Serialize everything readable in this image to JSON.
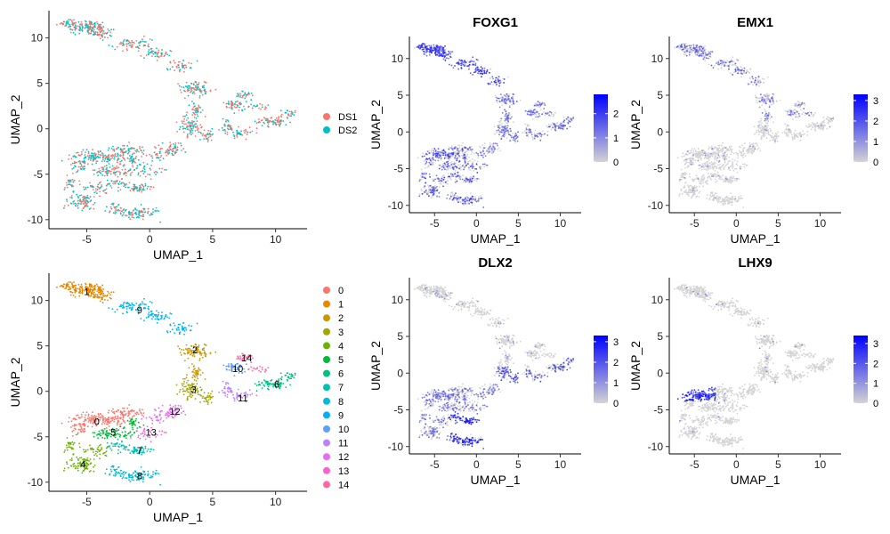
{
  "chart_data": [
    {
      "type": "scatter",
      "id": "dataset",
      "title": "",
      "xlabel": "UMAP_1",
      "ylabel": "UMAP_2",
      "xticks": [
        -5,
        0,
        5,
        10
      ],
      "yticks": [
        -10,
        -5,
        0,
        5,
        10
      ],
      "xlim": [
        -8,
        12.5
      ],
      "ylim": [
        -11,
        13
      ],
      "coloring": "group",
      "legend": {
        "position": "right",
        "entries": [
          {
            "label": "DS1",
            "color": "#F8766D"
          },
          {
            "label": "DS2",
            "color": "#00BFC4"
          }
        ]
      }
    },
    {
      "type": "scatter",
      "id": "FOXG1",
      "title": "FOXG1",
      "xlabel": "UMAP_1",
      "ylabel": "UMAP_2",
      "xticks": [
        -5,
        0,
        5,
        10
      ],
      "yticks": [
        -10,
        -5,
        0,
        5,
        10
      ],
      "xlim": [
        -8,
        12.5
      ],
      "ylim": [
        -11,
        13
      ],
      "coloring": "expression",
      "colorbar": {
        "ticks": [
          0,
          1,
          2
        ],
        "max": 2.8,
        "low_color": "#D3D3D3",
        "high_color": "#0000FF"
      }
    },
    {
      "type": "scatter",
      "id": "EMX1",
      "title": "EMX1",
      "xlabel": "UMAP_1",
      "ylabel": "UMAP_2",
      "xticks": [
        -5,
        0,
        5,
        10
      ],
      "yticks": [
        -10,
        -5,
        0,
        5,
        10
      ],
      "xlim": [
        -8,
        12.5
      ],
      "ylim": [
        -11,
        13
      ],
      "coloring": "expression",
      "colorbar": {
        "ticks": [
          0,
          1,
          2,
          3
        ],
        "max": 3.3,
        "low_color": "#D3D3D3",
        "high_color": "#0000FF"
      }
    },
    {
      "type": "scatter",
      "id": "clusters",
      "title": "",
      "xlabel": "UMAP_1",
      "ylabel": "UMAP_2",
      "xticks": [
        -5,
        0,
        5,
        10
      ],
      "yticks": [
        -10,
        -5,
        0,
        5,
        10
      ],
      "xlim": [
        -8,
        12.5
      ],
      "ylim": [
        -11,
        13
      ],
      "coloring": "cluster",
      "legend": {
        "position": "right",
        "entries": [
          {
            "label": "0",
            "color": "#F8766D"
          },
          {
            "label": "1",
            "color": "#E58700"
          },
          {
            "label": "2",
            "color": "#C99800"
          },
          {
            "label": "3",
            "color": "#A3A500"
          },
          {
            "label": "4",
            "color": "#6BB100"
          },
          {
            "label": "5",
            "color": "#00BA38"
          },
          {
            "label": "6",
            "color": "#00BF7D"
          },
          {
            "label": "7",
            "color": "#00C0AF"
          },
          {
            "label": "8",
            "color": "#00BCD8"
          },
          {
            "label": "9",
            "color": "#00B0F6"
          },
          {
            "label": "10",
            "color": "#619CFF"
          },
          {
            "label": "11",
            "color": "#B983FF"
          },
          {
            "label": "12",
            "color": "#E76BF3"
          },
          {
            "label": "13",
            "color": "#FD61D1"
          },
          {
            "label": "14",
            "color": "#FF67A4"
          }
        ]
      },
      "cluster_labels": [
        {
          "label": "1",
          "x": -5,
          "y": 11
        },
        {
          "label": "9",
          "x": -0.8,
          "y": 9
        },
        {
          "label": "2",
          "x": 3.6,
          "y": 4.6
        },
        {
          "label": "14",
          "x": 7.7,
          "y": 3.7
        },
        {
          "label": "10",
          "x": 7.0,
          "y": 2.5
        },
        {
          "label": "6",
          "x": 10.1,
          "y": 0.8
        },
        {
          "label": "3",
          "x": 3.5,
          "y": 0.2
        },
        {
          "label": "11",
          "x": 7.4,
          "y": -0.7
        },
        {
          "label": "12",
          "x": 2.0,
          "y": -2.2
        },
        {
          "label": "0",
          "x": -4.2,
          "y": -3.3
        },
        {
          "label": "5",
          "x": -2.9,
          "y": -4.5
        },
        {
          "label": "13",
          "x": 0.1,
          "y": -4.5
        },
        {
          "label": "7",
          "x": -0.8,
          "y": -6.5
        },
        {
          "label": "4",
          "x": -5.3,
          "y": -8.0
        },
        {
          "label": "8",
          "x": -0.8,
          "y": -9.3
        }
      ]
    },
    {
      "type": "scatter",
      "id": "DLX2",
      "title": "DLX2",
      "xlabel": "UMAP_1",
      "ylabel": "UMAP_2",
      "xticks": [
        -5,
        0,
        5,
        10
      ],
      "yticks": [
        -10,
        -5,
        0,
        5,
        10
      ],
      "xlim": [
        -8,
        12.5
      ],
      "ylim": [
        -11,
        13
      ],
      "coloring": "expression",
      "colorbar": {
        "ticks": [
          0,
          1,
          2,
          3
        ],
        "max": 3.3,
        "low_color": "#D3D3D3",
        "high_color": "#0000FF"
      }
    },
    {
      "type": "scatter",
      "id": "LHX9",
      "title": "LHX9",
      "xlabel": "UMAP_1",
      "ylabel": "UMAP_2",
      "xticks": [
        -5,
        0,
        5,
        10
      ],
      "yticks": [
        -10,
        -5,
        0,
        5,
        10
      ],
      "xlim": [
        -8,
        12.5
      ],
      "ylim": [
        -11,
        13
      ],
      "coloring": "expression",
      "colorbar": {
        "ticks": [
          0,
          1,
          2,
          3
        ],
        "max": 3.4,
        "low_color": "#D3D3D3",
        "high_color": "#0000FF"
      }
    }
  ]
}
